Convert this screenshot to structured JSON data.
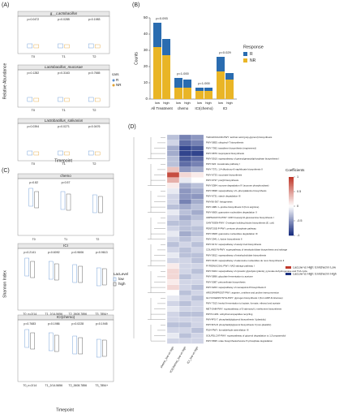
{
  "panel_a": {
    "label": "(A)",
    "ylabel": "Relative Abundance",
    "xlabel": "Timepoint",
    "legend_title": "cars",
    "legend": [
      "R",
      "NR"
    ],
    "plots": [
      {
        "title": "g__Lactobacillus",
        "xticks": [
          "T0",
          "T1",
          "T2"
        ],
        "pvalues": [
          "p=0.0472",
          "p=0.0285",
          "p=0.1983"
        ]
      },
      {
        "title": "Lactobacillus_mucosae",
        "xticks": [
          "T0",
          "T1",
          "T2"
        ],
        "pvalues": [
          "p=0.1282",
          "p=0.3163",
          "p=0.7665"
        ]
      },
      {
        "title": "Lactobacillus_salivarius",
        "xticks": [
          "T0",
          "T1",
          "T2"
        ],
        "pvalues": [
          "p=0.0394",
          "p=0.0271",
          "p=0.0476"
        ]
      }
    ]
  },
  "panel_c": {
    "label": "(C)",
    "ylabel": "Shannon Index",
    "xlabel": "Timepoint",
    "legend_title": "LacLevel",
    "legend": [
      "low",
      "high"
    ],
    "plots": [
      {
        "title": "chemo",
        "xticks": [
          "T0",
          "T1",
          "T2"
        ],
        "pvalues": [
          "p=0.82",
          "p=0.57"
        ]
      },
      {
        "title": "ICI",
        "xticks": [
          "T0_n=2/14",
          "T1_2/14.5656",
          "T2_2608.7856",
          "T3_7854+"
        ],
        "pvalues": [
          "p=0.2141",
          "p=0.6092",
          "p=0.9606",
          "p=0.9613"
        ]
      },
      {
        "title": "ICI(chemo)",
        "xticks": [
          "T0_n=2/14",
          "T1_2/14.5656",
          "T2_2608.7856",
          "T3_7854+"
        ],
        "pvalues": [
          "p=0.7683",
          "p=0.1986",
          "p=0.0228",
          "p=0.1945"
        ]
      }
    ]
  },
  "chart_data": {
    "type": "bar",
    "label": "(B)",
    "ylabel": "Counts",
    "legend_title": "Response",
    "groups": [
      "All Treatment",
      "chemo",
      "ICI(chemo)",
      "ICI"
    ],
    "pvalues": [
      "p=0.093",
      "p=1.000",
      "p=1.000",
      "p=0.029"
    ],
    "categories": [
      "low",
      "high",
      "low",
      "high",
      "low",
      "high",
      "low",
      "high"
    ],
    "series": [
      {
        "name": "NR",
        "color": "#e9b526",
        "values": [
          32,
          27,
          7,
          7,
          5,
          5,
          17,
          12
        ]
      },
      {
        "name": "R",
        "color": "#2a6cb0",
        "values": [
          15,
          10,
          6,
          5,
          2,
          2,
          9,
          4
        ]
      }
    ],
    "ylim": [
      0,
      50
    ],
    "yticks": [
      0,
      10,
      20,
      30,
      40,
      50
    ]
  },
  "panel_d": {
    "label": "(D)",
    "legend_title": "Coefficients",
    "colorbar_lim": [
      -1,
      1
    ],
    "colorbar_ticks": [
      1,
      0.5,
      0,
      -0.5,
      -1
    ],
    "columns": [
      "chemo_low vs high",
      "ICI(chemo)_low vs high",
      "ICI_low vs high"
    ],
    "legend": [
      {
        "label": "LacLow vs High: Enriched in Low",
        "color": "#c0392b"
      },
      {
        "label": "LacLow vs High: Enriched in High",
        "color": "#1a2f80"
      }
    ],
    "rows": [
      "TEICHOICACID-PWY: teichoic acid (poly-glycerol) biosynthesis",
      "PWY-5855: ubiquinol-7 biosynthesis",
      "PWY-7392: taxadiene biosynthesis (engineered)",
      "PWY-6876: isopropanol biosynthesis",
      "PWY-5910: superpathway of geranylgeranyldiphosphate biosynthesis I",
      "PWY-922: mevalonate pathway I",
      "PWY-7371: 1,4-dihydroxy-6-naphthoate biosynthesis II",
      "PWY-6733: succinate biosynthesis",
      "PWY-6737: preQ0 biosynthesis",
      "PWY-5384: sucrose degradation IV (sucrose phosphorylase)",
      "PWY-5838: superpathway of L-phenylalanine biosynthesis",
      "PWY-6731: starch degradation III",
      "PWY66-367: ketogenesis",
      "PWY-4981: L-proline biosynthesis II (from arginine)",
      "PWY-6606: guanosine nucleotides degradation II",
      "UDPNAGSYN-PWY: UDP-N-acetyl-D-glucosamine biosynthesis I",
      "OANTIGEN-PWY: O-antigen building blocks biosynthesis (E. coli)",
      "PENTOSE-P-PWY: pentose phosphate pathway",
      "PWY-6608: guanosine nucleotides degradation III",
      "PWY-2941: L-lysine biosynthesis II",
      "PWY-6172: superpathway of acetyl-CoA biosynthesis",
      "COLANSYN-PWY: superpathway of tetrahydrofolate biosynthesis and salvage",
      "PWY-5812: superpathway of tetrahydrofolate biosynthesis",
      "PWY-6126: superpathway of adenosine nucleotides de novo biosynthesis II",
      "PYRIDNUCSAL-PWY: NAD salvage pathway I",
      "PWY-5464: superpathway of cytosolic glycolysis (plants), pyruvate dehydrogenase and TCA cycle",
      "PWY-5896: glycolate fermentation to acetone",
      "PWY-5087: petroselinate biosynthesis",
      "PWY-6263: superpathway of menaquinol-8 biosynthesis II",
      "ARGORNPROST-PWY: arginine, ornithine and proline interconversion",
      "GLYCOGENSYNTH-PWY: glycogen biosynthesis I (from ADP-D-Glucose)",
      "PWY-7013: hexitol fermentation to lactate, formate, ethanol and acetate",
      "MET-SAM-PWY: superpathway of S-adenosyl-L-methionine biosynthesis",
      "PWY0-1261: anhydromuropeptides recycling",
      "PWY4FS-7: phosphatidylglycerol biosynthesis I (plastidic)",
      "PWY4FS-8: phosphatidylglycerol biosynthesis II (non-plastidic)",
      "P164-PWY: formaldehyde assimilation III",
      "GOLPDLCAT-PWY: superpathway of glycerol degradation to 1,3-propanediol",
      "PWY-5695: urate biosynthesis/inosine 5'-phosphate degradation"
    ],
    "values": [
      [
        -0.3,
        -0.6,
        -0.5
      ],
      [
        -0.2,
        -0.7,
        -0.6
      ],
      [
        -0.4,
        -0.9,
        -0.8
      ],
      [
        -0.4,
        -0.9,
        -0.9
      ],
      [
        -0.3,
        -0.8,
        -0.7
      ],
      [
        -0.3,
        -0.7,
        -0.6
      ],
      [
        0.3,
        -0.5,
        -0.4
      ],
      [
        0.9,
        0.2,
        0.1
      ],
      [
        0.4,
        -0.1,
        0
      ],
      [
        0.1,
        -0.4,
        -0.3
      ],
      [
        -0.1,
        -0.5,
        -0.4
      ],
      [
        -0.2,
        -0.5,
        -0.5
      ],
      [
        -0.2,
        -0.6,
        -0.4
      ],
      [
        -0.3,
        -0.4,
        -0.3
      ],
      [
        -0.1,
        -0.3,
        -0.4
      ],
      [
        -0.2,
        -0.4,
        -0.3
      ],
      [
        -0.3,
        -0.3,
        -0.2
      ],
      [
        -0.2,
        -0.3,
        -0.3
      ],
      [
        -0.1,
        -0.4,
        -0.3
      ],
      [
        -0.2,
        -0.3,
        -0.2
      ],
      [
        -0.3,
        -0.2,
        -0.3
      ],
      [
        -0.2,
        -0.3,
        -0.2
      ],
      [
        -0.1,
        -0.3,
        -0.3
      ],
      [
        -0.2,
        -0.2,
        -0.3
      ],
      [
        0.1,
        -0.2,
        -0.2
      ],
      [
        0.2,
        -0.2,
        -0.3
      ],
      [
        0.2,
        -0.3,
        -0.2
      ],
      [
        0.1,
        -0.2,
        -0.2
      ],
      [
        0.2,
        -0.2,
        -0.3
      ],
      [
        0,
        -0.3,
        -0.2
      ],
      [
        -0.1,
        -0.2,
        -0.3
      ],
      [
        -0.2,
        -0.3,
        -0.2
      ],
      [
        -0.1,
        -0.2,
        -0.2
      ],
      [
        -0.2,
        -0.3,
        -0.3
      ],
      [
        -0.2,
        -0.2,
        -0.2
      ],
      [
        -0.3,
        -0.3,
        -0.2
      ],
      [
        -0.2,
        -0.2,
        -0.3
      ],
      [
        -0.1,
        -0.3,
        -0.2
      ],
      [
        -0.2,
        -0.2,
        -0.2
      ]
    ]
  }
}
